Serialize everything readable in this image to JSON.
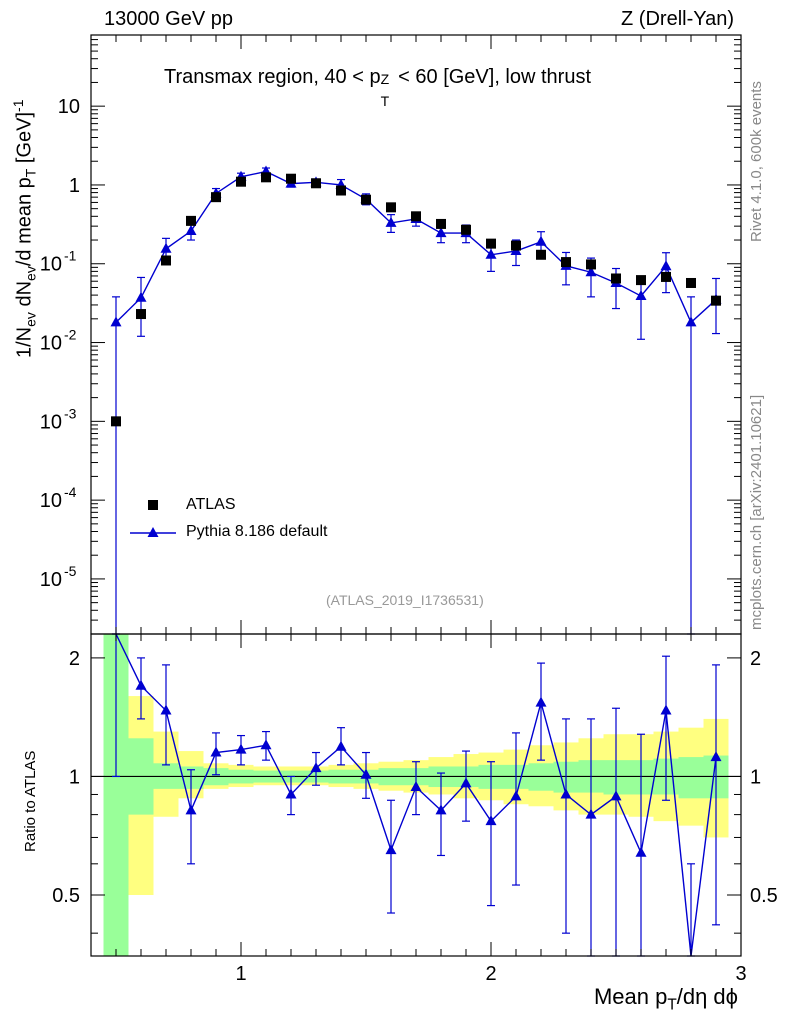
{
  "header": {
    "left": "13000 GeV pp",
    "right": "Z (Drell-Yan)"
  },
  "side_labels": {
    "rivet": "Rivet 4.1.0,  600k events",
    "mcplots": "mcplots.cern.ch [arXiv:2401.10621]"
  },
  "chart_data": {
    "type": "scatter",
    "title": "Transmax region, 40 < pTZ < 60 [GeV], low thrust",
    "title_parts": {
      "a": "Transmax region, 40 < p",
      "sup": "Z",
      "sub": "T",
      "b": " < 60 [GeV], low thrust"
    },
    "analysis_ref": "(ATLAS_2019_I1736531)",
    "xlabel": "Mean pT/dη dϕ",
    "xlabel_parts": {
      "a": "Mean p",
      "sub": "T",
      "b": "/dη dϕ"
    },
    "ylabel": "1/Nev dNev/d mean pT [GeV]^-1",
    "ylabel_parts": {
      "a": "1/N",
      "s1": "ev",
      "b": " dN",
      "s2": "ev",
      "c": "/d mean p",
      "s3": "T",
      "d": " [GeV]",
      "sup": "-1"
    },
    "ratio_ylabel": "Ratio to ATLAS",
    "xlim": [
      0.4,
      3.0
    ],
    "ylim": [
      2e-06,
      80
    ],
    "ratio_ylim": [
      0.35,
      2.3
    ],
    "x_ticks": [
      1,
      2,
      3
    ],
    "x_tick_labels": [
      "1",
      "2",
      "3"
    ],
    "y_ticks": [
      {
        "base": "10",
        "exp": "-5",
        "value": 1e-05
      },
      {
        "base": "10",
        "exp": "-4",
        "value": 0.0001
      },
      {
        "base": "10",
        "exp": "-3",
        "value": 0.001
      },
      {
        "base": "10",
        "exp": "-2",
        "value": 0.01
      },
      {
        "base": "10",
        "exp": "-1",
        "value": 0.1
      },
      {
        "base": "1",
        "exp": "",
        "value": 1
      },
      {
        "base": "10",
        "exp": "",
        "value": 10
      }
    ],
    "ratio_ticks": [
      0.5,
      1,
      2
    ],
    "ratio_tick_labels": [
      "0.5",
      "1",
      "2"
    ],
    "x": [
      0.5,
      0.6,
      0.7,
      0.8,
      0.9,
      1.0,
      1.1,
      1.2,
      1.3,
      1.4,
      1.5,
      1.6,
      1.7,
      1.8,
      1.9,
      2.0,
      2.1,
      2.2,
      2.3,
      2.4,
      2.5,
      2.6,
      2.7,
      2.8,
      2.9
    ],
    "series": [
      {
        "name": "ATLAS",
        "color": "#000000",
        "marker": "square",
        "values": [
          0.001,
          0.023,
          0.11,
          0.35,
          0.7,
          1.1,
          1.25,
          1.2,
          1.05,
          0.85,
          0.65,
          0.52,
          0.4,
          0.32,
          0.27,
          0.18,
          0.17,
          0.13,
          0.105,
          0.098,
          0.065,
          0.062,
          0.068,
          0.057,
          0.034
        ]
      },
      {
        "name": "Pythia 8.186 default",
        "color": "#0000d0",
        "marker": "triangle",
        "values": [
          0.018,
          0.037,
          0.155,
          0.26,
          0.78,
          1.27,
          1.48,
          1.04,
          1.08,
          1.0,
          0.66,
          0.33,
          0.37,
          0.245,
          0.245,
          0.13,
          0.145,
          0.19,
          0.094,
          0.078,
          0.057,
          0.039,
          0.093,
          0.018,
          0.035
        ],
        "err_lo": [
          0.018,
          0.025,
          0.05,
          0.06,
          0.1,
          0.12,
          0.14,
          0.1,
          0.1,
          0.15,
          0.1,
          0.08,
          0.07,
          0.06,
          0.06,
          0.05,
          0.05,
          0.06,
          0.04,
          0.04,
          0.03,
          0.028,
          0.05,
          0.018,
          0.022
        ],
        "err_hi": [
          0.02,
          0.03,
          0.055,
          0.065,
          0.12,
          0.14,
          0.16,
          0.11,
          0.11,
          0.17,
          0.11,
          0.09,
          0.08,
          0.065,
          0.065,
          0.055,
          0.055,
          0.065,
          0.045,
          0.04,
          0.03,
          0.025,
          0.045,
          0.02,
          0.03
        ]
      }
    ],
    "ratio": {
      "values": [
        3.0,
        1.7,
        1.47,
        0.82,
        1.15,
        1.17,
        1.2,
        0.9,
        1.05,
        1.19,
        1.01,
        0.65,
        0.94,
        0.82,
        0.96,
        0.77,
        0.89,
        1.54,
        0.9,
        0.8,
        0.89,
        0.64,
        1.47,
        0.3,
        1.12
      ],
      "err_lo": [
        2.0,
        0.3,
        0.4,
        0.22,
        0.14,
        0.1,
        0.1,
        0.1,
        0.1,
        0.12,
        0.13,
        0.2,
        0.14,
        0.19,
        0.19,
        0.3,
        0.36,
        0.44,
        0.5,
        0.6,
        0.6,
        0.64,
        0.6,
        0.3,
        0.7
      ],
      "err_hi": [
        2.0,
        0.3,
        0.45,
        0.22,
        0.14,
        0.1,
        0.1,
        0.1,
        0.1,
        0.14,
        0.14,
        0.22,
        0.15,
        0.2,
        0.2,
        0.32,
        0.4,
        0.4,
        0.5,
        0.6,
        0.6,
        0.64,
        0.55,
        0.3,
        0.8
      ],
      "band_stat_lo": [
        0.3,
        0.8,
        0.93,
        0.93,
        0.95,
        0.96,
        0.965,
        0.965,
        0.965,
        0.96,
        0.96,
        0.95,
        0.95,
        0.94,
        0.94,
        0.93,
        0.93,
        0.92,
        0.91,
        0.91,
        0.9,
        0.9,
        0.9,
        0.88,
        0.88
      ],
      "band_stat_hi": [
        2.5,
        1.25,
        1.08,
        1.06,
        1.05,
        1.04,
        1.035,
        1.035,
        1.035,
        1.04,
        1.04,
        1.05,
        1.05,
        1.06,
        1.06,
        1.07,
        1.07,
        1.08,
        1.09,
        1.1,
        1.1,
        1.1,
        1.11,
        1.12,
        1.13
      ],
      "band_tot_lo": [
        0.3,
        0.5,
        0.79,
        0.88,
        0.93,
        0.94,
        0.95,
        0.95,
        0.95,
        0.94,
        0.93,
        0.92,
        0.91,
        0.9,
        0.88,
        0.87,
        0.85,
        0.84,
        0.82,
        0.8,
        0.8,
        0.79,
        0.77,
        0.75,
        0.7
      ],
      "band_tot_hi": [
        2.5,
        1.6,
        1.3,
        1.16,
        1.08,
        1.07,
        1.06,
        1.06,
        1.06,
        1.07,
        1.08,
        1.09,
        1.1,
        1.12,
        1.14,
        1.15,
        1.17,
        1.2,
        1.22,
        1.25,
        1.28,
        1.28,
        1.3,
        1.33,
        1.4
      ]
    },
    "legend_position": "center-left"
  }
}
